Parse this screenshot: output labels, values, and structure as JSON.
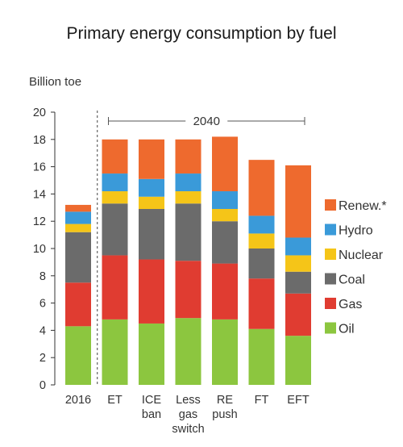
{
  "chart_data": {
    "type": "bar",
    "stacked": true,
    "title": "Primary energy consumption by fuel",
    "ylabel": "Billion toe",
    "xlabel": "",
    "ylim": [
      0,
      20
    ],
    "yticks": [
      0,
      2,
      4,
      6,
      8,
      10,
      12,
      14,
      16,
      18,
      20
    ],
    "grid": false,
    "legend_position": "right",
    "categories": [
      [
        "2016"
      ],
      [
        "ET"
      ],
      [
        "ICE",
        "ban"
      ],
      [
        "Less",
        "gas",
        "switch"
      ],
      [
        "RE",
        "push"
      ],
      [
        "FT"
      ],
      [
        "EFT"
      ]
    ],
    "annotation": {
      "label": "2040",
      "from_category": 1,
      "to_category": 6
    },
    "series": [
      {
        "name": "Oil",
        "color": "#8cc63f",
        "values": [
          4.3,
          4.8,
          4.5,
          4.9,
          4.8,
          4.1,
          3.6
        ]
      },
      {
        "name": "Gas",
        "color": "#e03c31",
        "values": [
          3.2,
          4.7,
          4.7,
          4.2,
          4.1,
          3.7,
          3.1
        ]
      },
      {
        "name": "Coal",
        "color": "#6b6b6b",
        "values": [
          3.7,
          3.8,
          3.7,
          4.2,
          3.1,
          2.2,
          1.6
        ]
      },
      {
        "name": "Nuclear",
        "color": "#f5c518",
        "values": [
          0.6,
          0.9,
          0.9,
          0.9,
          0.9,
          1.1,
          1.2
        ]
      },
      {
        "name": "Hydro",
        "color": "#3a9ad9",
        "values": [
          0.9,
          1.3,
          1.3,
          1.3,
          1.3,
          1.3,
          1.3
        ]
      },
      {
        "name": "Renew.*",
        "color": "#ee6a2e",
        "values": [
          0.5,
          2.5,
          2.9,
          2.5,
          4.0,
          4.1,
          5.3
        ]
      }
    ]
  }
}
